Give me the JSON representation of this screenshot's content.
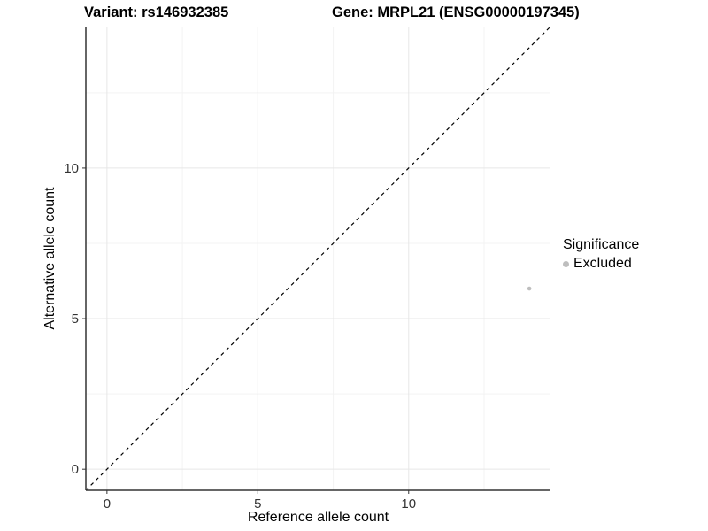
{
  "chart_data": {
    "type": "scatter",
    "title_left": "Variant: rs146932385",
    "title_right": "Gene: MRPL21 (ENSG00000197345)",
    "xlabel": "Reference allele count",
    "ylabel": "Alternative allele count",
    "xlim": [
      -0.7,
      14.7
    ],
    "ylim": [
      -0.7,
      14.7
    ],
    "x_ticks": [
      0,
      5,
      10
    ],
    "y_ticks": [
      0,
      5,
      10
    ],
    "x_minor": [
      2.5,
      7.5,
      12.5
    ],
    "y_minor": [
      2.5,
      7.5,
      12.5
    ],
    "grid": true,
    "points": [
      {
        "x": 14,
        "y": 6,
        "significance": "Excluded",
        "color": "#bebebe"
      }
    ],
    "reference_line": {
      "style": "dashed",
      "slope": 1,
      "intercept": 0,
      "color": "#000000"
    },
    "legend": {
      "title": "Significance",
      "position": "right",
      "items": [
        {
          "label": "Excluded",
          "color": "#bebebe"
        }
      ]
    }
  }
}
